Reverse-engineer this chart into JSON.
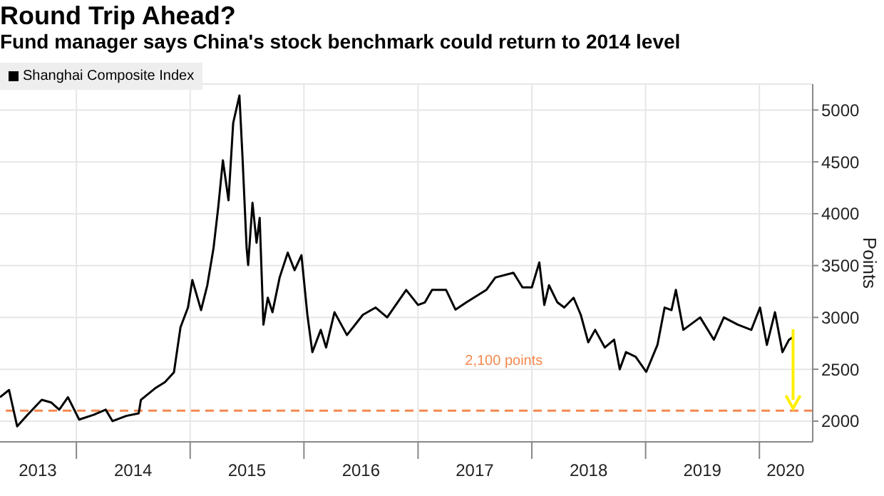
{
  "chart_data": {
    "type": "line",
    "title": "Round Trip Ahead?",
    "subtitle": "Fund manager says China's stock benchmark could return to 2014 level",
    "ylabel": "Points",
    "x": [
      "2013-05-01",
      "2013-05-30",
      "2013-06-25",
      "2013-07-28",
      "2013-09-12",
      "2013-10-12",
      "2013-11-07",
      "2013-12-05",
      "2014-01-10",
      "2014-02-25",
      "2014-04-05",
      "2014-04-27",
      "2014-06-10",
      "2014-07-20",
      "2014-07-27",
      "2014-09-10",
      "2014-10-12",
      "2014-11-10",
      "2014-12-01",
      "2014-12-25",
      "2015-01-08",
      "2015-02-05",
      "2015-02-25",
      "2015-03-17",
      "2015-04-01",
      "2015-04-16",
      "2015-05-04",
      "2015-05-19",
      "2015-06-08",
      "2015-06-18",
      "2015-07-01",
      "2015-07-06",
      "2015-07-20",
      "2015-08-02",
      "2015-08-12",
      "2015-08-24",
      "2015-09-07",
      "2015-09-22",
      "2015-10-15",
      "2015-11-10",
      "2015-12-02",
      "2015-12-24",
      "2016-01-12",
      "2016-01-28",
      "2016-02-24",
      "2016-03-12",
      "2016-04-08",
      "2016-05-18",
      "2016-07-08",
      "2016-08-18",
      "2016-09-24",
      "2016-11-24",
      "2017-01-01",
      "2017-01-23",
      "2017-02-15",
      "2017-04-01",
      "2017-05-01",
      "2017-06-05",
      "2017-08-08",
      "2017-09-06",
      "2017-11-03",
      "2017-12-02",
      "2018-01-01",
      "2018-01-25",
      "2018-02-10",
      "2018-02-25",
      "2018-03-24",
      "2018-04-15",
      "2018-05-15",
      "2018-06-07",
      "2018-07-01",
      "2018-07-23",
      "2018-08-23",
      "2018-09-22",
      "2018-10-10",
      "2018-10-30",
      "2018-11-30",
      "2019-01-03",
      "2019-02-08",
      "2019-03-03",
      "2019-03-25",
      "2019-04-08",
      "2019-05-02",
      "2019-06-25",
      "2019-08-08",
      "2019-09-09",
      "2019-10-24",
      "2019-12-06",
      "2020-01-03",
      "2020-01-25",
      "2020-02-20",
      "2020-03-15",
      "2020-04-05",
      "2020-04-18"
    ],
    "series": [
      {
        "name": "Shanghai Composite Index",
        "color": "#000000",
        "values": [
          2230,
          2300,
          1950,
          2060,
          2205,
          2180,
          2110,
          2230,
          2015,
          2060,
          2110,
          2000,
          2050,
          2075,
          2205,
          2315,
          2375,
          2470,
          2905,
          3095,
          3360,
          3070,
          3310,
          3670,
          4060,
          4515,
          4130,
          4875,
          5140,
          4540,
          3675,
          3505,
          4105,
          3720,
          3960,
          2930,
          3190,
          3050,
          3385,
          3625,
          3455,
          3600,
          3025,
          2665,
          2880,
          2710,
          3050,
          2830,
          3025,
          3095,
          3000,
          3265,
          3120,
          3145,
          3265,
          3265,
          3075,
          3145,
          3265,
          3385,
          3430,
          3290,
          3290,
          3530,
          3120,
          3310,
          3145,
          3095,
          3190,
          3025,
          2760,
          2880,
          2710,
          2785,
          2500,
          2665,
          2620,
          2475,
          2735,
          3095,
          3070,
          3265,
          2880,
          3000,
          2785,
          3000,
          2930,
          2880,
          3095,
          2735,
          3050,
          2665,
          2785,
          2810
        ]
      }
    ],
    "xlim": [
      "2013-05-01",
      "2020-06-20"
    ],
    "xticks": [
      {
        "value": "2013-08-30",
        "label": "2013"
      },
      {
        "value": "2014-01-01",
        "label": null
      },
      {
        "value": "2014-07-02",
        "label": "2014"
      },
      {
        "value": "2015-01-01",
        "label": null
      },
      {
        "value": "2015-07-02",
        "label": "2015"
      },
      {
        "value": "2016-01-01",
        "label": null
      },
      {
        "value": "2016-07-02",
        "label": "2016"
      },
      {
        "value": "2017-01-01",
        "label": null
      },
      {
        "value": "2017-07-02",
        "label": "2017"
      },
      {
        "value": "2018-01-01",
        "label": null
      },
      {
        "value": "2018-07-02",
        "label": "2018"
      },
      {
        "value": "2019-01-01",
        "label": null
      },
      {
        "value": "2019-07-02",
        "label": "2019"
      },
      {
        "value": "2020-01-01",
        "label": null
      },
      {
        "value": "2020-03-25",
        "label": "2020"
      }
    ],
    "ylim": [
      1800,
      5250
    ],
    "yticks": [
      2000,
      2500,
      3000,
      3500,
      4000,
      4500,
      5000
    ],
    "ref_lines": [
      {
        "axis": "y",
        "value": 2100,
        "label": "2,100 points",
        "color": "#f4894f",
        "line_style": "dashed"
      }
    ],
    "grid": true,
    "legend": "top left"
  }
}
